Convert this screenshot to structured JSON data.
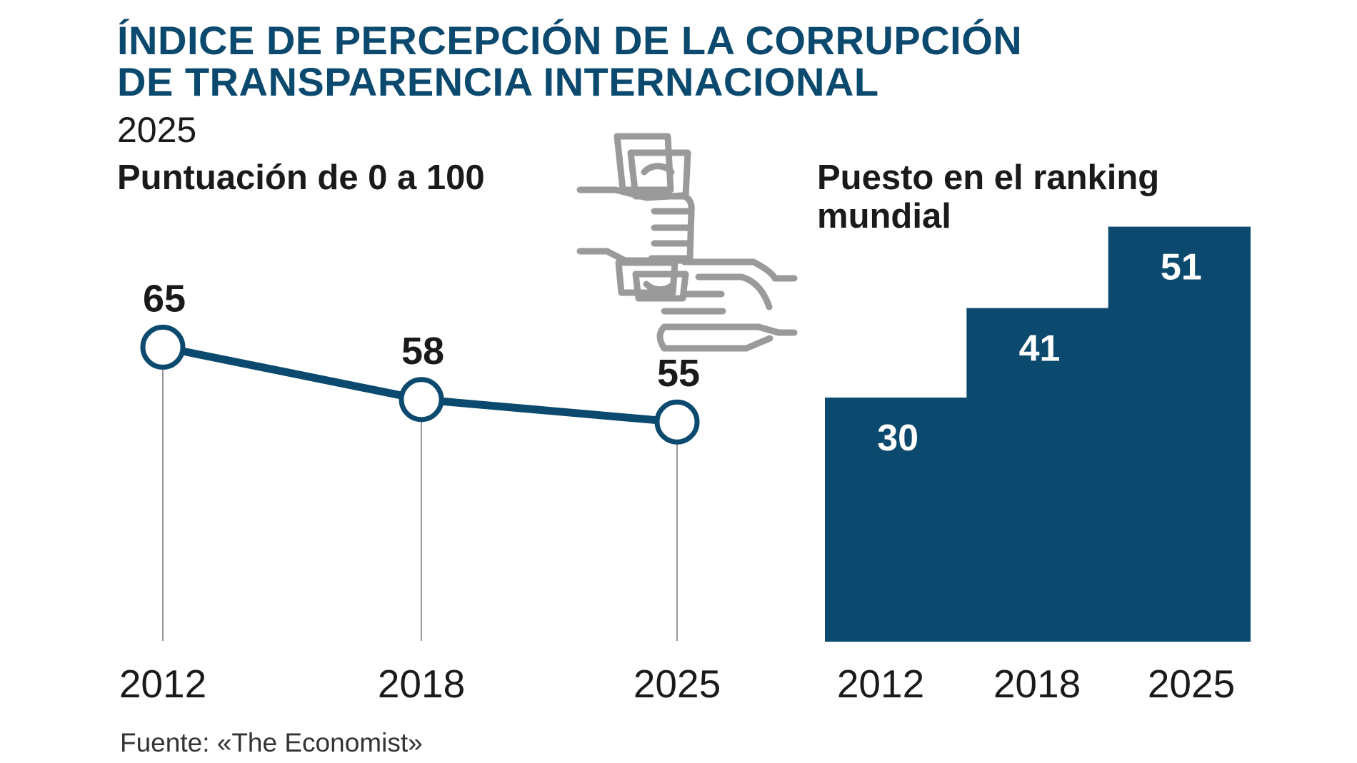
{
  "header": {
    "title_line1": "ÍNDICE DE PERCEPCIÓN DE LA CORRUPCIÓN",
    "title_line2": "DE TRANSPARENCIA INTERNACIONAL",
    "year": "2025"
  },
  "icon": "bribe-hands-money-icon",
  "colors": {
    "primary": "#0b4a6e",
    "icon_gray": "#9a9a9a",
    "gridline": "#999999"
  },
  "source": "Fuente: «The Economist»",
  "chart_data": [
    {
      "type": "line",
      "title": "Puntuación de 0 a 100",
      "categories": [
        "2012",
        "2018",
        "2025"
      ],
      "values": [
        65,
        58,
        55
      ],
      "ylim": [
        26,
        68
      ],
      "marker": "open-circle",
      "data_labels": [
        "65",
        "58",
        "55"
      ]
    },
    {
      "type": "bar",
      "title": "Puesto en el ranking mundial",
      "categories": [
        "2012",
        "2018",
        "2025"
      ],
      "values": [
        30,
        41,
        51
      ],
      "ylim": [
        0,
        55
      ],
      "data_labels": [
        "30",
        "41",
        "51"
      ]
    }
  ]
}
